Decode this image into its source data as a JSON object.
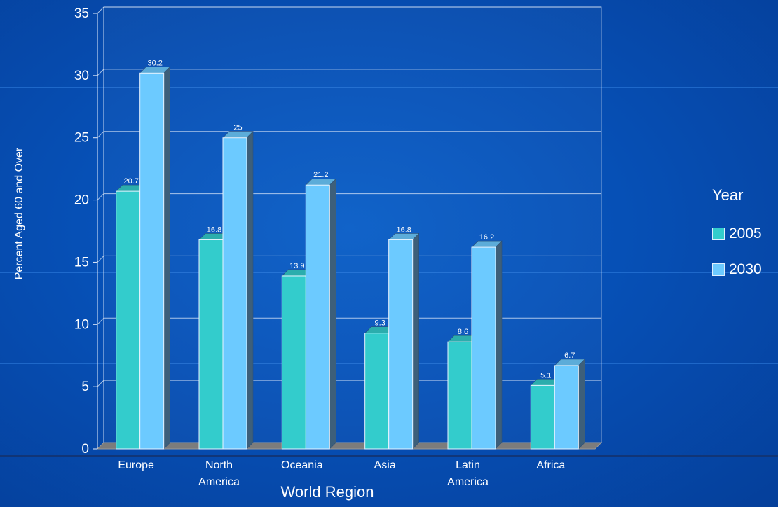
{
  "chart_data": {
    "type": "bar",
    "xlabel": "World Region",
    "ylabel": "Percent Aged 60 and Over",
    "ylim": [
      0,
      35
    ],
    "yticks": [
      "0",
      "5",
      "10",
      "15",
      "20",
      "25",
      "30",
      "35"
    ],
    "categories": [
      {
        "line1": "Europe",
        "line2": ""
      },
      {
        "line1": "North",
        "line2": "America"
      },
      {
        "line1": "Oceania",
        "line2": ""
      },
      {
        "line1": "Asia",
        "line2": ""
      },
      {
        "line1": "Latin",
        "line2": "America"
      },
      {
        "line1": "Africa",
        "line2": ""
      }
    ],
    "legend": {
      "title": "Year",
      "position": "right"
    },
    "grid": true,
    "series": [
      {
        "name": "2005",
        "color": "#33cccc",
        "values": [
          20.7,
          16.8,
          13.9,
          9.3,
          8.6,
          5.1
        ],
        "labels": [
          "20.7",
          "16.8",
          "13.9",
          "9.3",
          "8.6",
          "5.1"
        ]
      },
      {
        "name": "2030",
        "color": "#6ccaff",
        "values": [
          30.2,
          25,
          21.2,
          16.8,
          16.2,
          6.7
        ],
        "labels": [
          "30.2",
          "25",
          "21.2",
          "16.8",
          "16.2",
          "6.7"
        ]
      }
    ]
  }
}
